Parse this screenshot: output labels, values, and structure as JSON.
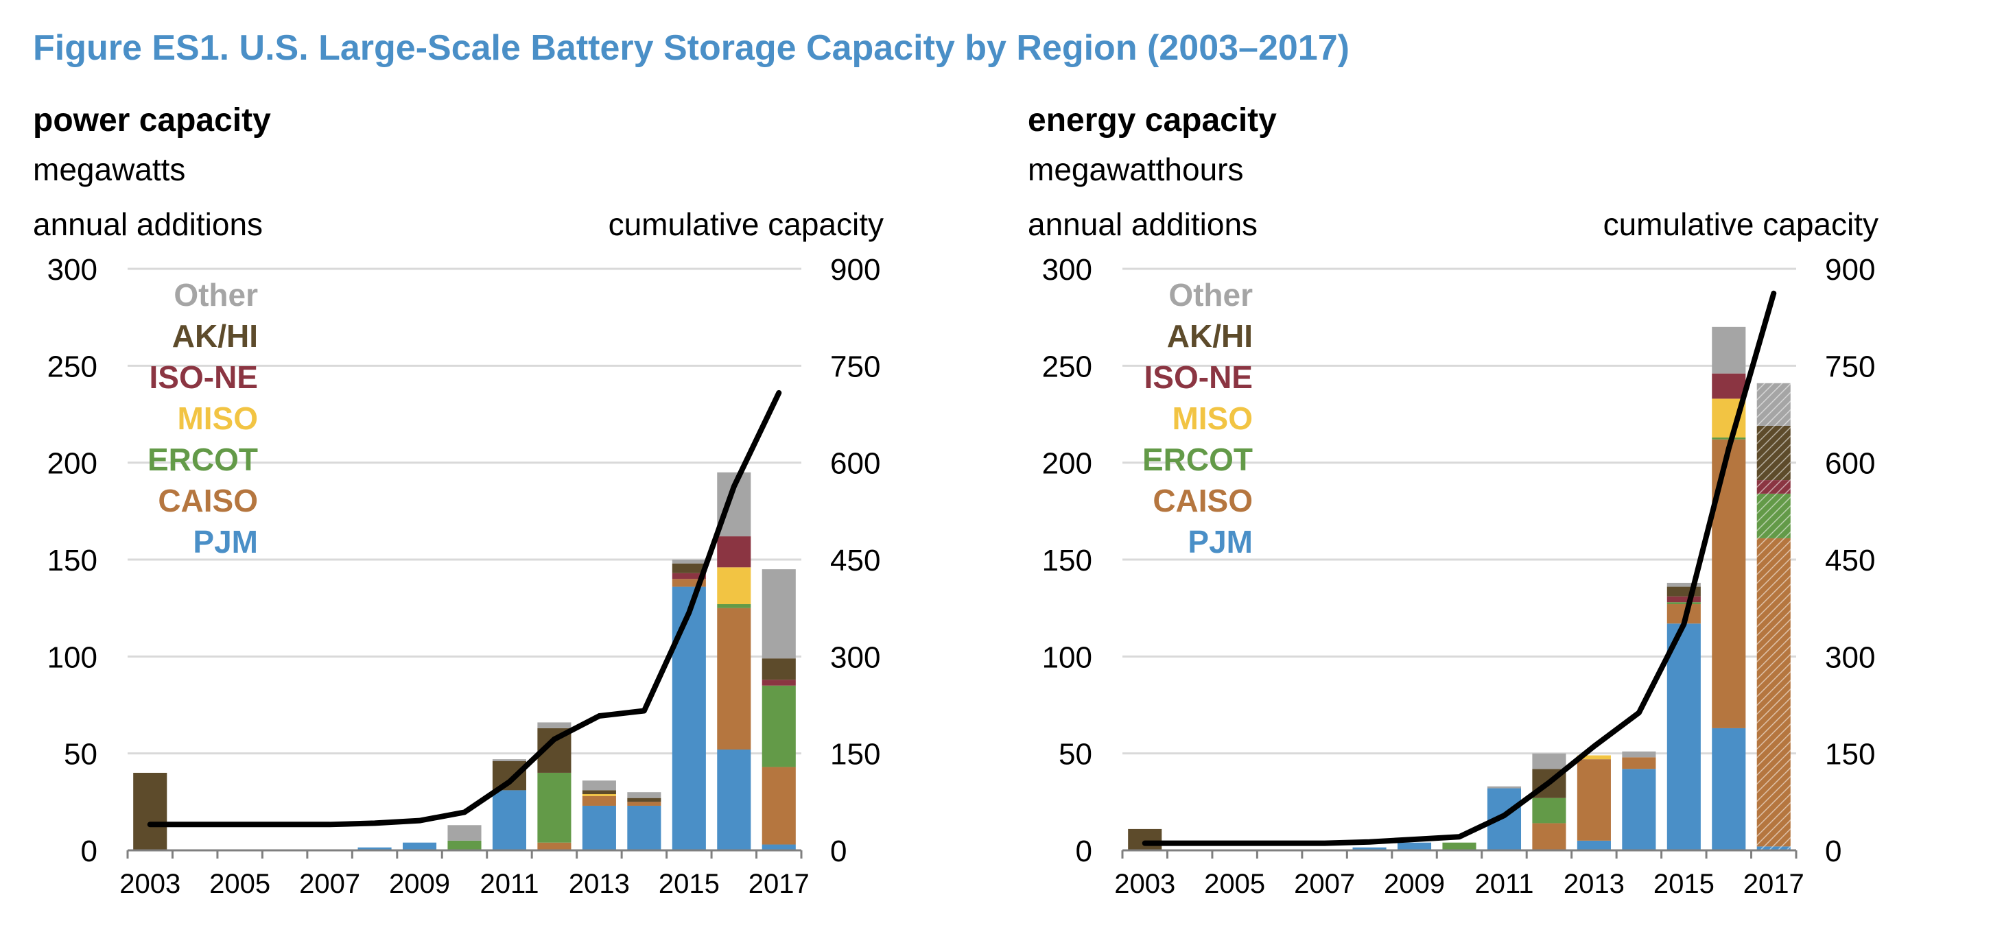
{
  "figure_title": "Figure ES1. U.S. Large-Scale Battery Storage Capacity by Region (2003–2017)",
  "colors": {
    "PJM": "#4a8fc7",
    "CAISO": "#b5763f",
    "ERCOT": "#639a48",
    "MISO": "#f2c443",
    "ISO-NE": "#8b3542",
    "AK/HI": "#5d4b2b",
    "Other": "#a5a5a5",
    "gridline": "#d9d9d9",
    "line": "#000000"
  },
  "legend_order": [
    "Other",
    "AK/HI",
    "ISO-NE",
    "MISO",
    "ERCOT",
    "CAISO",
    "PJM"
  ],
  "chart_data": [
    {
      "type": "bar",
      "subtype": "stacked bar with cumulative line (secondary axis)",
      "title": "power capacity",
      "unit": "megawatts",
      "left_axis_label": "annual additions",
      "right_axis_label": "cumulative capacity",
      "ylim_left": [
        0,
        300
      ],
      "yticks_left": [
        "0",
        "50",
        "100",
        "150",
        "200",
        "250",
        "300"
      ],
      "ylim_right": [
        0,
        900
      ],
      "yticks_right": [
        "0",
        "150",
        "300",
        "450",
        "600",
        "750",
        "900"
      ],
      "categories": [
        "2003",
        "2004",
        "2005",
        "2006",
        "2007",
        "2008",
        "2009",
        "2010",
        "2011",
        "2012",
        "2013",
        "2014",
        "2015",
        "2016",
        "2017"
      ],
      "xtick_labels": [
        "2003",
        "2005",
        "2007",
        "2009",
        "2011",
        "2013",
        "2015",
        "2017"
      ],
      "grid": true,
      "legend_position": "top-left",
      "hatched_categories": [],
      "series": [
        {
          "name": "PJM",
          "values": [
            0,
            0,
            0,
            0,
            0,
            1.5,
            4,
            0,
            31,
            0,
            23,
            23,
            136,
            52,
            3
          ]
        },
        {
          "name": "CAISO",
          "values": [
            0,
            0,
            0,
            0,
            0,
            0,
            0,
            0,
            0,
            4,
            5,
            2,
            4,
            73,
            40
          ]
        },
        {
          "name": "ERCOT",
          "values": [
            0,
            0,
            0,
            0,
            0,
            0,
            0,
            5,
            0,
            36,
            0,
            0,
            0,
            2,
            42
          ]
        },
        {
          "name": "MISO",
          "values": [
            0,
            0,
            0,
            0,
            0,
            0,
            0,
            0,
            0,
            0,
            1,
            0,
            0,
            19,
            0
          ]
        },
        {
          "name": "ISO-NE",
          "values": [
            0,
            0,
            0,
            0,
            0,
            0,
            0,
            0,
            0,
            0,
            0,
            0,
            3,
            16,
            3
          ]
        },
        {
          "name": "AK/HI",
          "values": [
            40,
            0,
            0,
            0,
            0,
            0,
            0,
            0,
            15,
            23,
            2,
            2,
            5,
            0,
            11
          ]
        },
        {
          "name": "Other",
          "values": [
            0,
            0,
            0,
            0,
            0,
            0,
            0,
            8,
            1,
            3,
            5,
            3,
            2,
            33,
            46
          ]
        }
      ],
      "cumulative": {
        "name": "cumulative capacity",
        "values": [
          40,
          40,
          40,
          40,
          40,
          42,
          46,
          59,
          106,
          172,
          208,
          216,
          368,
          563,
          708
        ]
      }
    },
    {
      "type": "bar",
      "subtype": "stacked bar with cumulative line (secondary axis)",
      "title": "energy capacity",
      "unit": "megawatthours",
      "left_axis_label": "annual additions",
      "right_axis_label": "cumulative capacity",
      "ylim_left": [
        0,
        300
      ],
      "yticks_left": [
        "0",
        "50",
        "100",
        "150",
        "200",
        "250",
        "300"
      ],
      "ylim_right": [
        0,
        900
      ],
      "yticks_right": [
        "0",
        "150",
        "300",
        "450",
        "600",
        "750",
        "900"
      ],
      "categories": [
        "2003",
        "2004",
        "2005",
        "2006",
        "2007",
        "2008",
        "2009",
        "2010",
        "2011",
        "2012",
        "2013",
        "2014",
        "2015",
        "2016",
        "2017"
      ],
      "xtick_labels": [
        "2003",
        "2005",
        "2007",
        "2009",
        "2011",
        "2013",
        "2015",
        "2017"
      ],
      "grid": true,
      "legend_position": "top-left",
      "hatched_categories": [
        "2017"
      ],
      "series": [
        {
          "name": "PJM",
          "values": [
            0,
            0,
            0,
            0,
            0,
            1.5,
            4,
            0,
            32,
            0,
            5,
            42,
            117,
            63,
            2
          ]
        },
        {
          "name": "CAISO",
          "values": [
            0,
            0,
            0,
            0,
            0,
            0,
            0,
            0,
            0,
            14,
            42,
            6,
            10,
            149,
            159
          ]
        },
        {
          "name": "ERCOT",
          "values": [
            0,
            0,
            0,
            0,
            0,
            0,
            0,
            4,
            0,
            13,
            0,
            0,
            1,
            1,
            23
          ]
        },
        {
          "name": "MISO",
          "values": [
            0,
            0,
            0,
            0,
            0,
            0,
            0,
            0,
            0,
            0,
            2,
            0,
            0,
            20,
            0
          ]
        },
        {
          "name": "ISO-NE",
          "values": [
            0,
            0,
            0,
            0,
            0,
            0,
            0,
            0,
            0,
            0,
            0,
            0,
            3,
            13,
            7
          ]
        },
        {
          "name": "AK/HI",
          "values": [
            11,
            0,
            0,
            0,
            0,
            0,
            0,
            0,
            0,
            15,
            0,
            0,
            5,
            0,
            28
          ]
        },
        {
          "name": "Other",
          "values": [
            0,
            0,
            0,
            0,
            0,
            0,
            0,
            0,
            1,
            8,
            0,
            3,
            2,
            24,
            22
          ]
        }
      ],
      "cumulative": {
        "name": "cumulative capacity",
        "values": [
          11,
          11,
          11,
          11,
          11,
          13,
          17,
          21,
          54,
          105,
          161,
          213,
          350,
          622,
          862
        ]
      }
    }
  ]
}
